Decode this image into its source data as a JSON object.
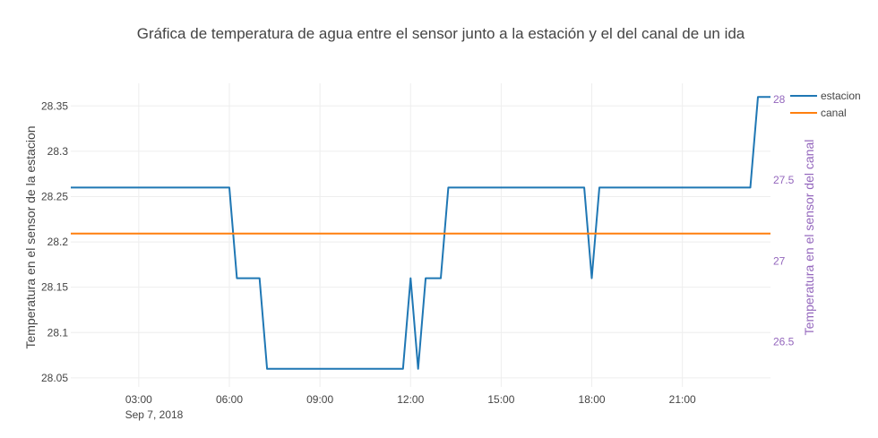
{
  "chart_data": {
    "type": "line",
    "title": "Gráfica de temperatura de agua entre el sensor junto a la estación y el del canal de un ida",
    "x_date_label": "Sep 7, 2018",
    "xlim": [
      "2018-09-07 00:45",
      "2018-09-07 23:55"
    ],
    "x_ticks": [
      "03:00",
      "06:00",
      "09:00",
      "12:00",
      "15:00",
      "18:00",
      "21:00"
    ],
    "y_left": {
      "label": "Temperatura en el sensor de la estacion",
      "range": [
        28.04,
        28.375
      ],
      "ticks": [
        "28.05",
        "28.1",
        "28.15",
        "28.2",
        "28.25",
        "28.3",
        "28.35"
      ]
    },
    "y_right": {
      "label": "Temperatura en el sensor del canal",
      "range": [
        26.22,
        28.1
      ],
      "ticks": [
        "26.5",
        "27",
        "27.5",
        "28"
      ],
      "color": "#9467bd"
    },
    "grid": true,
    "legend_position": "top-right",
    "series": [
      {
        "name": "estacion",
        "axis": "left",
        "color": "#1f77b4",
        "points": [
          [
            "2018-09-07 00:45",
            28.26
          ],
          [
            "2018-09-07 06:00",
            28.26
          ],
          [
            "2018-09-07 06:15",
            28.16
          ],
          [
            "2018-09-07 07:00",
            28.16
          ],
          [
            "2018-09-07 07:15",
            28.06
          ],
          [
            "2018-09-07 11:45",
            28.06
          ],
          [
            "2018-09-07 12:00",
            28.16
          ],
          [
            "2018-09-07 12:15",
            28.06
          ],
          [
            "2018-09-07 12:30",
            28.16
          ],
          [
            "2018-09-07 13:00",
            28.16
          ],
          [
            "2018-09-07 13:15",
            28.26
          ],
          [
            "2018-09-07 17:45",
            28.26
          ],
          [
            "2018-09-07 18:00",
            28.16
          ],
          [
            "2018-09-07 18:15",
            28.26
          ],
          [
            "2018-09-07 23:15",
            28.26
          ],
          [
            "2018-09-07 23:30",
            28.36
          ],
          [
            "2018-09-07 23:55",
            28.36
          ]
        ]
      },
      {
        "name": "canal",
        "axis": "right",
        "color": "#ff7f0e",
        "points": [
          [
            "2018-09-07 00:45",
            27.17
          ],
          [
            "2018-09-07 23:55",
            27.17
          ]
        ]
      }
    ]
  }
}
